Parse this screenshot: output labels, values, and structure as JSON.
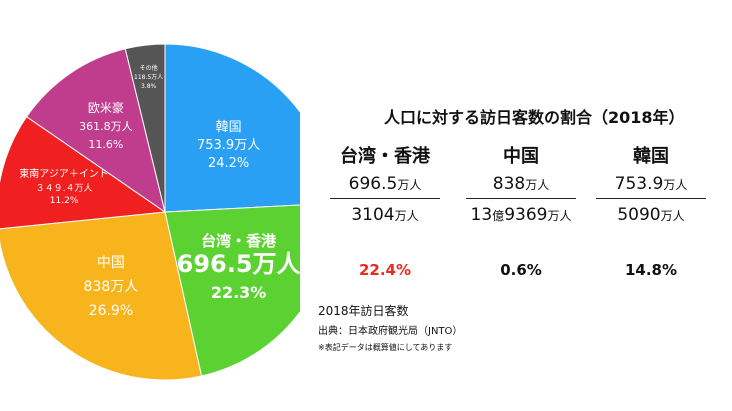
{
  "chart_data": {
    "type": "pie",
    "slices": [
      {
        "name": "韓国",
        "value": 753.9,
        "value_label": "753.9万人",
        "percent_label": "24.2%",
        "color": "#2aa0f5"
      },
      {
        "name": "台湾・香港",
        "value": 696.5,
        "value_label": "696.5万人",
        "value_num": "696.5",
        "value_unit": "万人",
        "percent_label": "22.3%",
        "color": "#5cd232"
      },
      {
        "name": "中国",
        "value": 838,
        "value_label": "838万人",
        "percent_label": "26.9%",
        "color": "#f8b41d"
      },
      {
        "name": "東南アジア＋インド",
        "value": 349.4,
        "value_label": "３４９.４万人",
        "percent_label": "11.2%",
        "color": "#f02020"
      },
      {
        "name": "欧米豪",
        "value": 361.8,
        "value_label": "361.8万人",
        "percent_label": "11.6%",
        "color": "#c03c8c"
      },
      {
        "name": "その他",
        "value": 118.5,
        "value_label": "118.5万人",
        "percent_label": "3.8%",
        "color": "#555555"
      }
    ],
    "caption": {
      "title": "2018年訪日客数",
      "source": "出典：日本政府観光局（JNTO）",
      "note": "※表記データは概算値にしてあります"
    }
  },
  "table": {
    "title": "人口に対する訪日客数の割合（2018年）",
    "columns": [
      {
        "name": "台湾・香港",
        "visitors": "696.5",
        "visitors_unit": "万人",
        "population": "3104",
        "population_unit": "万人",
        "population_prefix": "",
        "population_prefix_unit": "",
        "ratio": "22.4%",
        "ratio_color": "#f0281e"
      },
      {
        "name": "中国",
        "visitors": "838",
        "visitors_unit": "万人",
        "population": "9369",
        "population_unit": "万人",
        "population_prefix": "13",
        "population_prefix_unit": "億",
        "ratio": "0.6%",
        "ratio_color": "#111111"
      },
      {
        "name": "韓国",
        "visitors": "753.9",
        "visitors_unit": "万人",
        "population": "5090",
        "population_unit": "万人",
        "population_prefix": "",
        "population_prefix_unit": "",
        "ratio": "14.8%",
        "ratio_color": "#111111"
      }
    ]
  }
}
